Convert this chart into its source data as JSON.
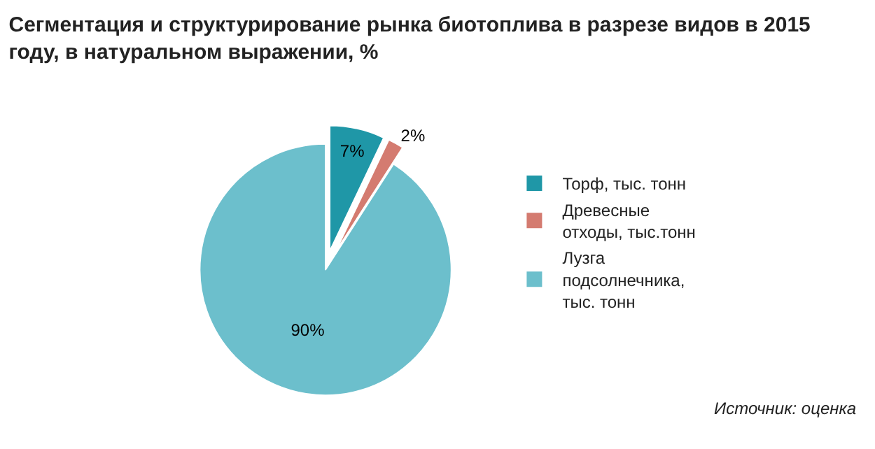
{
  "chart_data": {
    "type": "pie",
    "title": "Сегментация и структурирование рынка биотоплива в разрезе видов в 2015 году, в натуральном выражении, %",
    "categories": [
      "Торф, тыс. тонн",
      "Древесные отходы, тыс.тонн",
      "Лузга подсолнечника, тыс. тонн"
    ],
    "values": [
      7,
      2,
      90
    ],
    "value_labels": [
      "7%",
      "2%",
      "90%"
    ],
    "colors": [
      "#1f97a7",
      "#d47b70",
      "#6cbfcc"
    ],
    "legend": "right",
    "annotations": [
      "Источник: оценка"
    ]
  }
}
